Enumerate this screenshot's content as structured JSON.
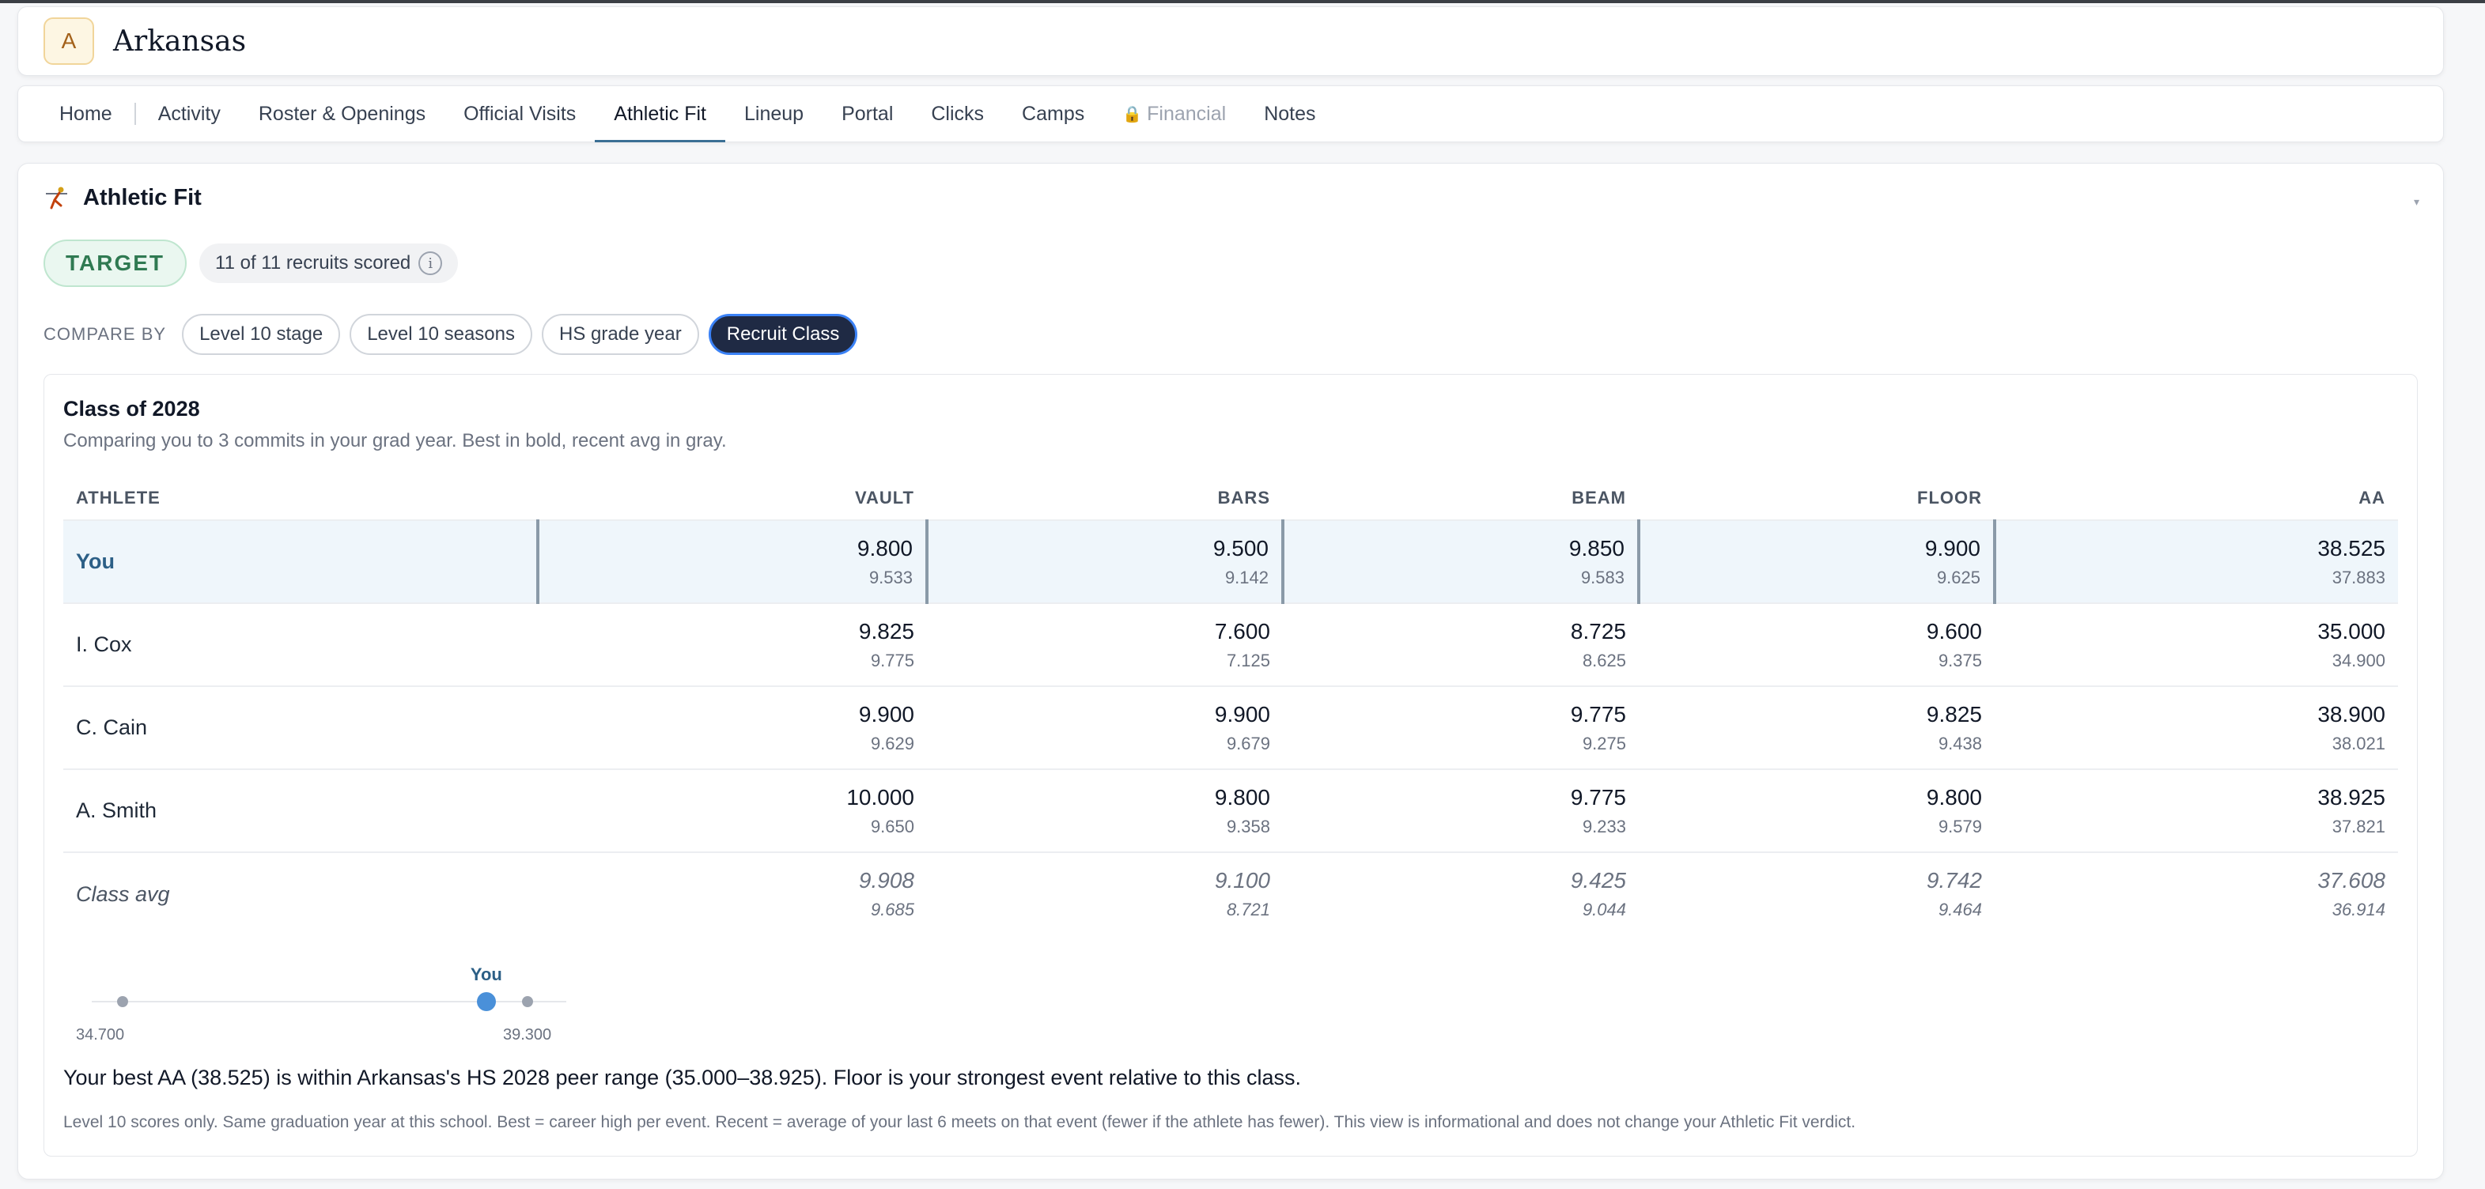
{
  "header": {
    "avatar_letter": "A",
    "school_name": "Arkansas"
  },
  "tabs": [
    {
      "label": "Home"
    },
    {
      "label": "Activity"
    },
    {
      "label": "Roster & Openings"
    },
    {
      "label": "Official Visits"
    },
    {
      "label": "Athletic Fit"
    },
    {
      "label": "Lineup"
    },
    {
      "label": "Portal"
    },
    {
      "label": "Clicks"
    },
    {
      "label": "Camps"
    },
    {
      "label": "Financial"
    },
    {
      "label": "Notes"
    }
  ],
  "active_tab": "Athletic Fit",
  "section": {
    "title": "Athletic Fit",
    "icon": "gymnast-icon",
    "verdict": "TARGET",
    "scored_text": "11 of 11 recruits scored",
    "info_glyph": "i"
  },
  "compare": {
    "label": "COMPARE BY",
    "options": [
      "Level 10 stage",
      "Level 10 seasons",
      "HS grade year",
      "Recruit Class"
    ],
    "selected": "Recruit Class"
  },
  "panel": {
    "title": "Class of 2028",
    "description": "Comparing you to 3 commits in your grad year. Best in bold, recent avg in gray.",
    "columns": [
      "ATHLETE",
      "VAULT",
      "BARS",
      "BEAM",
      "FLOOR",
      "AA"
    ],
    "rows": [
      {
        "name": "You",
        "scores": [
          {
            "best": "9.800",
            "recent": "9.533"
          },
          {
            "best": "9.500",
            "recent": "9.142"
          },
          {
            "best": "9.850",
            "recent": "9.583"
          },
          {
            "best": "9.900",
            "recent": "9.625"
          },
          {
            "best": "38.525",
            "recent": "37.883"
          }
        ]
      },
      {
        "name": "I. Cox",
        "scores": [
          {
            "best": "9.825",
            "recent": "9.775"
          },
          {
            "best": "7.600",
            "recent": "7.125"
          },
          {
            "best": "8.725",
            "recent": "8.625"
          },
          {
            "best": "9.600",
            "recent": "9.375"
          },
          {
            "best": "35.000",
            "recent": "34.900"
          }
        ]
      },
      {
        "name": "C. Cain",
        "scores": [
          {
            "best": "9.900",
            "recent": "9.629"
          },
          {
            "best": "9.900",
            "recent": "9.679"
          },
          {
            "best": "9.775",
            "recent": "9.275"
          },
          {
            "best": "9.825",
            "recent": "9.438"
          },
          {
            "best": "38.900",
            "recent": "38.021"
          }
        ]
      },
      {
        "name": "A. Smith",
        "scores": [
          {
            "best": "10.000",
            "recent": "9.650"
          },
          {
            "best": "9.800",
            "recent": "9.358"
          },
          {
            "best": "9.775",
            "recent": "9.233"
          },
          {
            "best": "9.800",
            "recent": "9.579"
          },
          {
            "best": "38.925",
            "recent": "37.821"
          }
        ]
      },
      {
        "name": "Class avg",
        "scores": [
          {
            "best": "9.908",
            "recent": "9.685"
          },
          {
            "best": "9.100",
            "recent": "8.721"
          },
          {
            "best": "9.425",
            "recent": "9.044"
          },
          {
            "best": "9.742",
            "recent": "9.464"
          },
          {
            "best": "37.608",
            "recent": "36.914"
          }
        ]
      }
    ],
    "range": {
      "label_you": "You",
      "min_label": "34.700",
      "max_label": "39.300",
      "min": 34.7,
      "max": 39.3,
      "peer_points": [
        35.0,
        38.925
      ],
      "you_value": 38.525
    },
    "summary": "Your best AA (38.525) is within Arkansas's HS 2028 peer range (35.000–38.925). Floor is your strongest event relative to this class.",
    "footnote": "Level 10 scores only. Same graduation year at this school. Best = career high per event. Recent = average of your last 6 meets on that event (fewer if the athlete has fewer). This view is informational and does not change your Athletic Fit verdict."
  },
  "colors": {
    "accent": "#3b6f95",
    "target_green": "#2f7a52",
    "you_dot": "#4a90d9",
    "chip_active": "#1f2a44"
  }
}
